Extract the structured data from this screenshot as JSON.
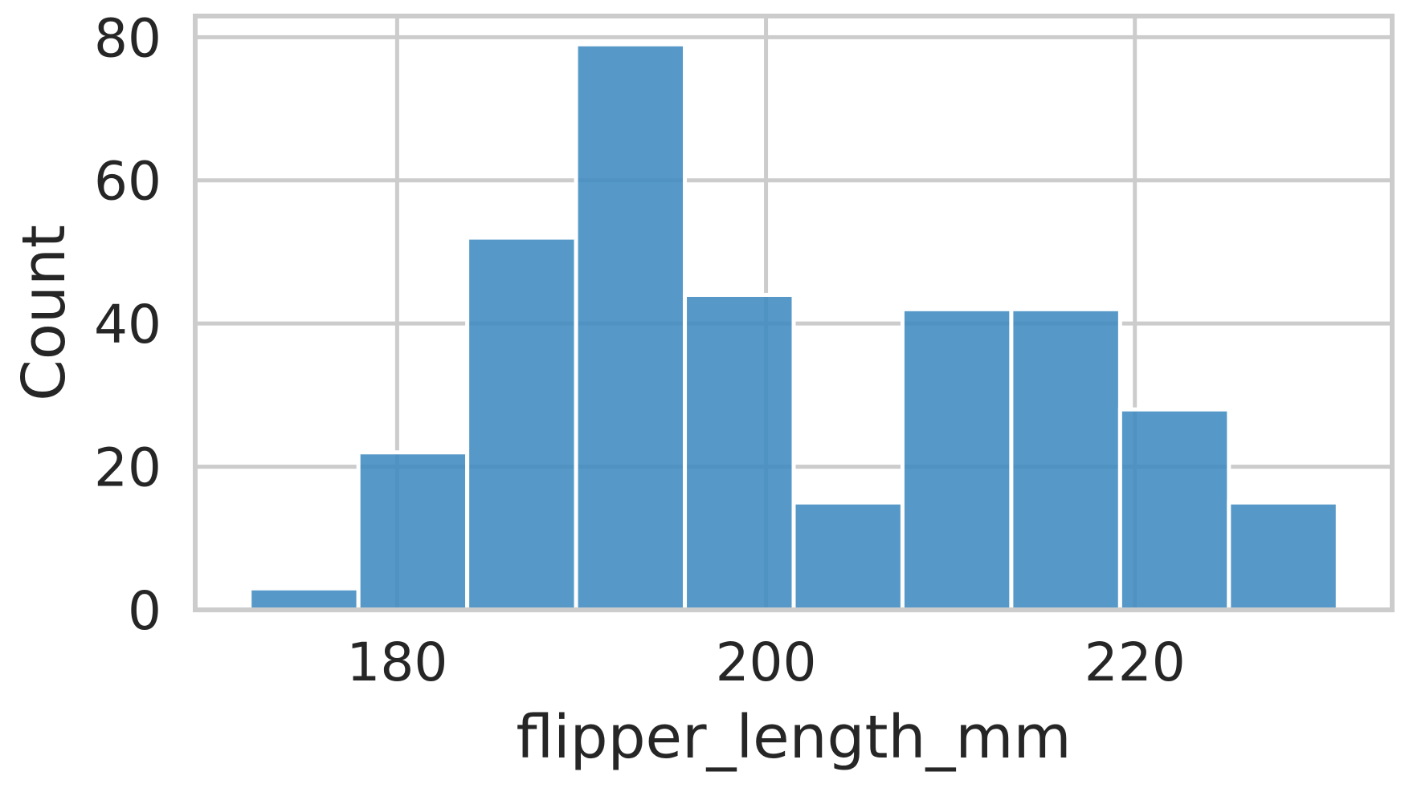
{
  "chart_data": {
    "type": "bar",
    "subtype": "histogram",
    "bins": [
      {
        "x0": 172.0,
        "x1": 177.9,
        "count": 3
      },
      {
        "x0": 177.9,
        "x1": 183.8,
        "count": 22
      },
      {
        "x0": 183.8,
        "x1": 189.7,
        "count": 52
      },
      {
        "x0": 189.7,
        "x1": 195.6,
        "count": 79
      },
      {
        "x0": 195.6,
        "x1": 201.5,
        "count": 44
      },
      {
        "x0": 201.5,
        "x1": 207.4,
        "count": 15
      },
      {
        "x0": 207.4,
        "x1": 213.3,
        "count": 42
      },
      {
        "x0": 213.3,
        "x1": 219.2,
        "count": 42
      },
      {
        "x0": 219.2,
        "x1": 225.1,
        "count": 28
      },
      {
        "x0": 225.1,
        "x1": 231.0,
        "count": 15
      }
    ],
    "xlabel": "flipper_length_mm",
    "ylabel": "Count",
    "xticks": [
      180,
      200,
      220
    ],
    "yticks": [
      0,
      20,
      40,
      60,
      80
    ],
    "xlim": [
      169.05,
      233.95
    ],
    "ylim": [
      0,
      82.95
    ],
    "grid": true,
    "colors": {
      "bar": "#3f8bc2",
      "grid": "#cccccc",
      "text": "#262626"
    }
  }
}
